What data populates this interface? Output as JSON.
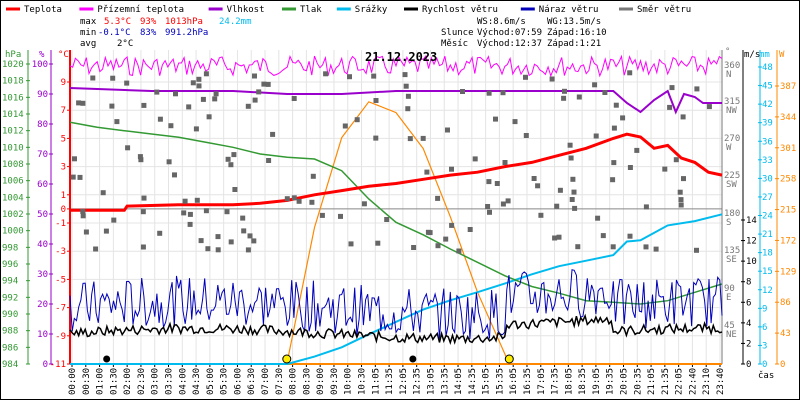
{
  "chart_data": {
    "type": "line",
    "title": "21.12.2023",
    "legend": [
      {
        "name": "Teplota",
        "color": "#ff0000"
      },
      {
        "name": "Přízemní teplota",
        "color": "#ff00ff"
      },
      {
        "name": "Vlhkost",
        "color": "#9900cc"
      },
      {
        "name": "Tlak",
        "color": "#339933"
      },
      {
        "name": "Srážky",
        "color": "#00bbee"
      },
      {
        "name": "Rychlost větru",
        "color": "#000000"
      },
      {
        "name": "Náraz větru",
        "color": "#0000bb"
      },
      {
        "name": "Směr větru",
        "color": "#777777"
      }
    ],
    "legend_placement": "top",
    "stats": {
      "max_label": "max",
      "min_label": "min",
      "avg_label": "avg",
      "max_temp": "5.3°C",
      "max_hum": "93%",
      "max_press": "1013hPa",
      "precip": "24.2mm",
      "min_temp": "-0.1°C",
      "min_hum": "83%",
      "min_press": "991.2hPa",
      "avg_temp": "2°C",
      "ws": "WS:8.6m/s",
      "wg": "WG:13.5m/s",
      "sun_label": "Slunce",
      "sun_rise": "Východ:07:59",
      "sun_set": "Západ:16:10",
      "moon_label": "Měsíc",
      "moon_rise": "Východ:12:37",
      "moon_set": "Západ:1:21"
    },
    "axes": {
      "pressure": {
        "unit": "hPa",
        "range": [
          984,
          1021
        ],
        "ticks": [
          984,
          986,
          988,
          990,
          992,
          994,
          996,
          998,
          1000,
          1002,
          1004,
          1006,
          1008,
          1010,
          1012,
          1014,
          1016,
          1018,
          1020
        ]
      },
      "humidity": {
        "unit": "%",
        "range": [
          0,
          102
        ],
        "ticks": [
          0,
          10,
          20,
          30,
          40,
          50,
          60,
          70,
          80,
          90,
          100
        ]
      },
      "temperature": {
        "unit": "°C",
        "range": [
          -11,
          10.5
        ],
        "ticks": [
          -11,
          -9,
          -7,
          -5,
          -3,
          -1,
          0,
          1,
          3,
          5,
          7,
          9
        ]
      },
      "direction": {
        "unit": "°",
        "ticks": [
          {
            "v": "360",
            "d": "N"
          },
          {
            "v": "315",
            "d": "NW"
          },
          {
            "v": "270",
            "d": "W"
          },
          {
            "v": "225",
            "d": "SW"
          },
          {
            "v": "180",
            "d": "S"
          },
          {
            "v": "135",
            "d": "SE"
          },
          {
            "v": "90",
            "d": "E"
          },
          {
            "v": "45",
            "d": "NE"
          }
        ]
      },
      "wind": {
        "unit": "m/s",
        "ticks": [
          0,
          2,
          4,
          6,
          8,
          10,
          12,
          14
        ]
      },
      "rain": {
        "unit": "mm",
        "ticks": [
          0,
          3,
          6,
          9,
          12,
          15,
          18,
          21,
          24,
          27,
          30,
          33,
          36,
          39,
          42,
          45,
          48
        ]
      },
      "solar": {
        "unit": "W",
        "ticks": [
          0,
          43,
          86,
          129,
          172,
          215,
          258,
          301,
          344,
          387
        ]
      },
      "x_label": "čas"
    },
    "x_ticks": [
      "00:00",
      "00:30",
      "01:00",
      "01:30",
      "02:00",
      "02:30",
      "03:00",
      "03:30",
      "04:00",
      "04:30",
      "05:00",
      "05:30",
      "06:00",
      "06:30",
      "07:00",
      "07:30",
      "08:00",
      "08:30",
      "09:00",
      "09:30",
      "10:00",
      "10:30",
      "11:05",
      "11:35",
      "12:05",
      "12:35",
      "13:05",
      "13:35",
      "14:05",
      "14:35",
      "15:05",
      "15:35",
      "16:05",
      "16:35",
      "17:05",
      "17:35",
      "18:05",
      "18:35",
      "19:05",
      "19:35",
      "20:05",
      "20:35",
      "21:05",
      "21:35",
      "22:05",
      "22:40",
      "23:10",
      "23:40"
    ],
    "series_points": {
      "temperature_x_hours": [
        0,
        2,
        2.1,
        4,
        6,
        7,
        8,
        9,
        10,
        11,
        12,
        13,
        14,
        15,
        16,
        17,
        18,
        19,
        20,
        20.5,
        21,
        21.5,
        22,
        22.5,
        23,
        23.5,
        24
      ],
      "temperature": [
        -0.1,
        -0.1,
        0.2,
        0.3,
        0.3,
        0.4,
        0.6,
        1.0,
        1.3,
        1.6,
        1.8,
        2.1,
        2.4,
        2.6,
        3.0,
        3.3,
        3.8,
        4.3,
        5.0,
        5.3,
        5.1,
        4.3,
        4.5,
        3.6,
        3.3,
        2.6,
        2.4
      ],
      "humidity_x_hours": [
        0,
        3,
        4,
        6,
        8,
        10,
        12,
        13,
        14,
        16,
        17,
        18,
        19,
        20,
        20.5,
        21,
        21.5,
        22,
        22.3,
        22.6,
        23,
        23.3,
        24
      ],
      "humidity": [
        92,
        91,
        91,
        91,
        90,
        90,
        91,
        91,
        91,
        91,
        91,
        91,
        91,
        91,
        87,
        84,
        88,
        91,
        84,
        90,
        89,
        87,
        87
      ],
      "pressure_x_hours": [
        0,
        1,
        2,
        3,
        4,
        5,
        6,
        7,
        8,
        9,
        10,
        11,
        12,
        13,
        14,
        15,
        16,
        17,
        18,
        19,
        20,
        21,
        22,
        23,
        24
      ],
      "pressure": [
        1013,
        1012.4,
        1012,
        1011.6,
        1011.2,
        1010.6,
        1010,
        1009.2,
        1008.8,
        1008.6,
        1007.2,
        1003.8,
        1001,
        999.5,
        997.8,
        996.2,
        994.6,
        993.3,
        992.5,
        991.6,
        991.4,
        991.2,
        991.6,
        992.6,
        993.6
      ],
      "precip_x_hours": [
        0,
        8,
        9,
        10,
        11,
        12,
        13,
        14,
        15,
        16,
        17,
        18,
        19,
        20,
        20.5,
        21,
        22,
        23,
        24
      ],
      "precip": [
        0,
        0,
        1.2,
        2.7,
        4.8,
        6.8,
        8.8,
        10.3,
        11.6,
        13.0,
        14.5,
        15.8,
        16.7,
        17.6,
        19.8,
        20.0,
        22.4,
        23.1,
        24.2
      ],
      "solar_x_hours": [
        7.98,
        9,
        10,
        11,
        12,
        13,
        14,
        15,
        16.17
      ],
      "solar": [
        0,
        190,
        315,
        365,
        350,
        300,
        205,
        100,
        0
      ]
    }
  }
}
